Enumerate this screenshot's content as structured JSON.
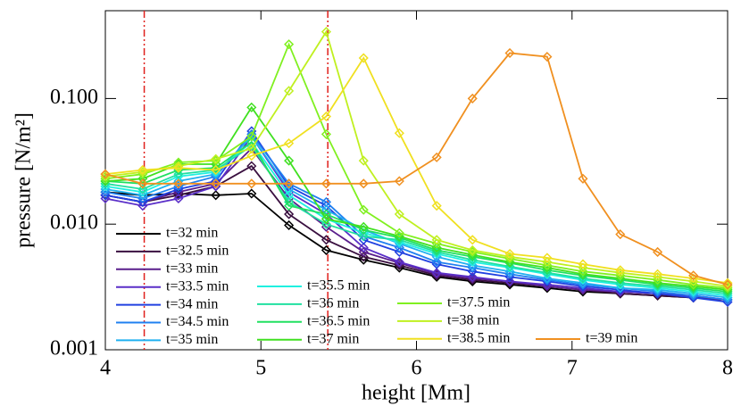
{
  "chart_data": {
    "type": "line",
    "xlabel": "height [Mm]",
    "ylabel": "pressure [N/m²]",
    "log_y": true,
    "xlim": [
      4,
      8
    ],
    "ylim": [
      0.001,
      0.5
    ],
    "xticks": [
      4,
      5,
      6,
      7,
      8
    ],
    "yticks": [
      {
        "value": 0.001,
        "label": "0.001"
      },
      {
        "value": 0.01,
        "label": "0.010"
      },
      {
        "value": 0.1,
        "label": "0.100"
      }
    ],
    "vlines": [
      4.25,
      5.43
    ],
    "vline_color": "#e0201c",
    "x": [
      4.0,
      4.24,
      4.47,
      4.71,
      4.94,
      5.18,
      5.42,
      5.66,
      5.89,
      6.13,
      6.36,
      6.6,
      6.84,
      7.07,
      7.31,
      7.55,
      7.78,
      8.0
    ],
    "series": [
      {
        "name": "t=32 min",
        "color": "#000000",
        "values": [
          0.018,
          0.017,
          0.0175,
          0.017,
          0.0175,
          0.0098,
          0.0062,
          0.0052,
          0.0045,
          0.0038,
          0.0035,
          0.0033,
          0.0031,
          0.0029,
          0.0028,
          0.0027,
          0.0026,
          0.0025
        ]
      },
      {
        "name": "t=32.5 min",
        "color": "#3a1040",
        "values": [
          0.017,
          0.015,
          0.017,
          0.02,
          0.029,
          0.012,
          0.0075,
          0.0055,
          0.0047,
          0.0039,
          0.0036,
          0.0034,
          0.0032,
          0.003,
          0.0028,
          0.0027,
          0.0026,
          0.0025
        ]
      },
      {
        "name": "t=33 min",
        "color": "#5a1e8c",
        "values": [
          0.017,
          0.015,
          0.018,
          0.021,
          0.04,
          0.016,
          0.0095,
          0.006,
          0.0049,
          0.004,
          0.0037,
          0.0035,
          0.0032,
          0.003,
          0.0029,
          0.0028,
          0.0026,
          0.0025
        ]
      },
      {
        "name": "t=33.5 min",
        "color": "#5a2ec8",
        "values": [
          0.016,
          0.014,
          0.016,
          0.02,
          0.05,
          0.018,
          0.012,
          0.0065,
          0.005,
          0.0041,
          0.0038,
          0.0035,
          0.0033,
          0.0031,
          0.0029,
          0.0028,
          0.0027,
          0.0025
        ]
      },
      {
        "name": "t=34 min",
        "color": "#2040e0",
        "values": [
          0.017,
          0.015,
          0.019,
          0.022,
          0.055,
          0.02,
          0.014,
          0.0075,
          0.006,
          0.0048,
          0.0042,
          0.0038,
          0.0035,
          0.0032,
          0.003,
          0.0028,
          0.0026,
          0.0024
        ]
      },
      {
        "name": "t=34.5 min",
        "color": "#2080f0",
        "values": [
          0.018,
          0.016,
          0.02,
          0.024,
          0.052,
          0.021,
          0.015,
          0.008,
          0.0065,
          0.005,
          0.0045,
          0.004,
          0.0036,
          0.0033,
          0.0031,
          0.0029,
          0.0027,
          0.0025
        ]
      },
      {
        "name": "t=35 min",
        "color": "#20b0f0",
        "values": [
          0.019,
          0.017,
          0.022,
          0.025,
          0.05,
          0.019,
          0.013,
          0.009,
          0.007,
          0.0055,
          0.0047,
          0.0042,
          0.0037,
          0.0034,
          0.0031,
          0.003,
          0.0028,
          0.0026
        ]
      },
      {
        "name": "t=35.5 min",
        "color": "#20f0e0",
        "values": [
          0.02,
          0.018,
          0.024,
          0.026,
          0.045,
          0.017,
          0.011,
          0.0085,
          0.0072,
          0.0058,
          0.005,
          0.0045,
          0.004,
          0.0036,
          0.0033,
          0.0031,
          0.0029,
          0.0027
        ]
      },
      {
        "name": "t=36 min",
        "color": "#20e0a0",
        "values": [
          0.021,
          0.019,
          0.025,
          0.027,
          0.042,
          0.015,
          0.01,
          0.008,
          0.0075,
          0.006,
          0.0052,
          0.0046,
          0.0041,
          0.0037,
          0.0034,
          0.0032,
          0.003,
          0.0028
        ]
      },
      {
        "name": "t=36.5 min",
        "color": "#20e060",
        "values": [
          0.022,
          0.021,
          0.027,
          0.028,
          0.045,
          0.014,
          0.012,
          0.009,
          0.0078,
          0.0062,
          0.0055,
          0.0049,
          0.0043,
          0.0039,
          0.0036,
          0.0033,
          0.0031,
          0.0029
        ]
      },
      {
        "name": "t=37 min",
        "color": "#40e020",
        "values": [
          0.022,
          0.023,
          0.03,
          0.03,
          0.085,
          0.032,
          0.011,
          0.0095,
          0.008,
          0.0065,
          0.0057,
          0.005,
          0.0045,
          0.004,
          0.0037,
          0.0034,
          0.0032,
          0.003
        ]
      },
      {
        "name": "t=37.5 min",
        "color": "#80f020",
        "values": [
          0.023,
          0.025,
          0.031,
          0.032,
          0.05,
          0.27,
          0.052,
          0.013,
          0.0085,
          0.007,
          0.006,
          0.0053,
          0.0047,
          0.0042,
          0.0039,
          0.0036,
          0.0033,
          0.0031
        ]
      },
      {
        "name": "t=38 min",
        "color": "#c0f020",
        "values": [
          0.024,
          0.026,
          0.029,
          0.033,
          0.04,
          0.115,
          0.34,
          0.032,
          0.012,
          0.0075,
          0.0062,
          0.0055,
          0.005,
          0.0045,
          0.0041,
          0.0038,
          0.0035,
          0.0032
        ]
      },
      {
        "name": "t=38.5 min",
        "color": "#f0e020",
        "values": [
          0.025,
          0.027,
          0.028,
          0.027,
          0.035,
          0.044,
          0.072,
          0.21,
          0.053,
          0.014,
          0.0075,
          0.0058,
          0.0054,
          0.0048,
          0.0043,
          0.004,
          0.0037,
          0.0034
        ]
      },
      {
        "name": "t=39 min",
        "color": "#f09020",
        "values": [
          0.025,
          0.021,
          0.021,
          0.021,
          0.021,
          0.021,
          0.021,
          0.021,
          0.022,
          0.034,
          0.1,
          0.23,
          0.215,
          0.023,
          0.0083,
          0.006,
          0.0039,
          0.0033
        ]
      }
    ]
  }
}
